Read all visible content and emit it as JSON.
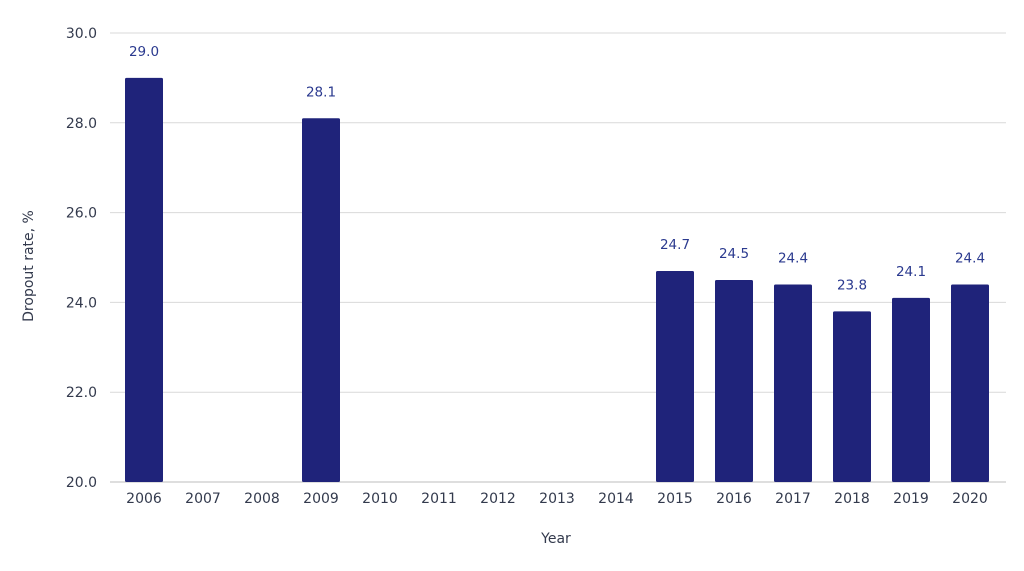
{
  "chart_data": {
    "type": "bar",
    "categories": [
      "2006",
      "2007",
      "2008",
      "2009",
      "2010",
      "2011",
      "2012",
      "2013",
      "2014",
      "2015",
      "2016",
      "2017",
      "2018",
      "2019",
      "2020"
    ],
    "values": [
      29.0,
      null,
      null,
      28.1,
      null,
      null,
      null,
      null,
      null,
      24.7,
      24.5,
      24.4,
      23.8,
      24.1,
      24.4
    ],
    "data_labels": [
      "29.0",
      "",
      "",
      "28.1",
      "",
      "",
      "",
      "",
      "",
      "24.7",
      "24.5",
      "24.4",
      "23.8",
      "24.1",
      "24.4"
    ],
    "xlabel": "Year",
    "ylabel": "Dropout rate, %",
    "ylim": [
      20,
      30
    ],
    "yticks": [
      20,
      22,
      24,
      26,
      28,
      30
    ],
    "ytick_labels": [
      "20.0",
      "22.0",
      "24.0",
      "26.0",
      "28.0",
      "30.0"
    ],
    "grid": true,
    "legend": "none",
    "bar_color": "#1f237a",
    "label_color": "#2b3a8f"
  }
}
